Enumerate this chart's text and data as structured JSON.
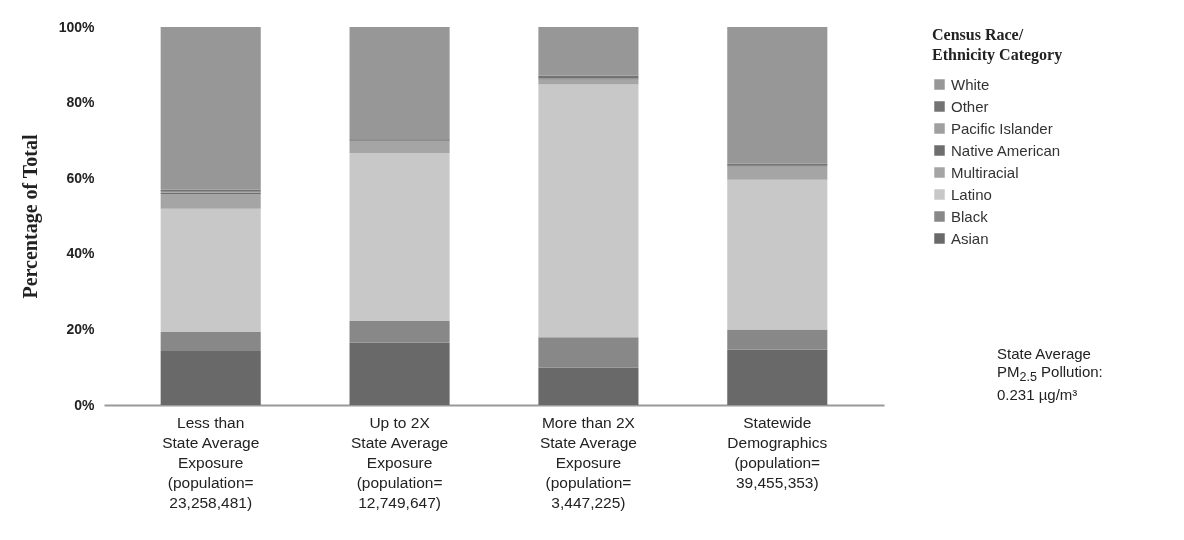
{
  "chart_data": {
    "type": "bar",
    "stacked": true,
    "categories": [
      "Less than\nState Average\nExposure\n\n(population=\n23,258,481)",
      "Up to 2X\nState Average\nExposure\n\n(population=\n12,749,647)",
      "More than 2X\nState Average\nExposure\n\n(population=\n3,447,225)",
      "Statewide\nDemographics\n\n(population=\n39,455,353)"
    ],
    "ylabel": "Percentage of Total",
    "legend_title": "Census Race/\nEthnicity Category",
    "ylim": [
      0,
      100
    ],
    "yticks": [
      {
        "value": 0,
        "label": "0%"
      },
      {
        "value": 20,
        "label": "20%"
      },
      {
        "value": 40,
        "label": "40%"
      },
      {
        "value": 60,
        "label": "60%"
      },
      {
        "value": 80,
        "label": "80%"
      },
      {
        "value": 100,
        "label": "100%"
      }
    ],
    "grid": false,
    "legend": "right",
    "series": [
      {
        "name": "Asian",
        "color": "#696969",
        "values": [
          14.3,
          16.5,
          9.9,
          14.7
        ]
      },
      {
        "name": "Black",
        "color": "#888888",
        "values": [
          5.0,
          5.7,
          8.0,
          5.3
        ]
      },
      {
        "name": "Latino",
        "color": "#c8c8c8",
        "values": [
          32.6,
          44.4,
          66.9,
          39.6
        ]
      },
      {
        "name": "Multiracial",
        "color": "#a5a5a5",
        "values": [
          3.9,
          3.3,
          1.3,
          3.5
        ]
      },
      {
        "name": "Native American",
        "color": "#6e6e6e",
        "values": [
          0.4,
          0.2,
          0.3,
          0.3
        ]
      },
      {
        "name": "Pacific Islander",
        "color": "#a0a0a0",
        "values": [
          0.2,
          0.1,
          null,
          null
        ]
      },
      {
        "name": "Other",
        "color": "#737373",
        "values": [
          0.6,
          0.2,
          0.7,
          0.5
        ]
      },
      {
        "name": "White",
        "color": "#979797",
        "values": [
          43.0,
          29.6,
          12.9,
          36.1
        ]
      }
    ],
    "annotations": [
      "State Average\nPM$_{2.5}$ Pollution:\n0.231 µg/m³"
    ]
  }
}
